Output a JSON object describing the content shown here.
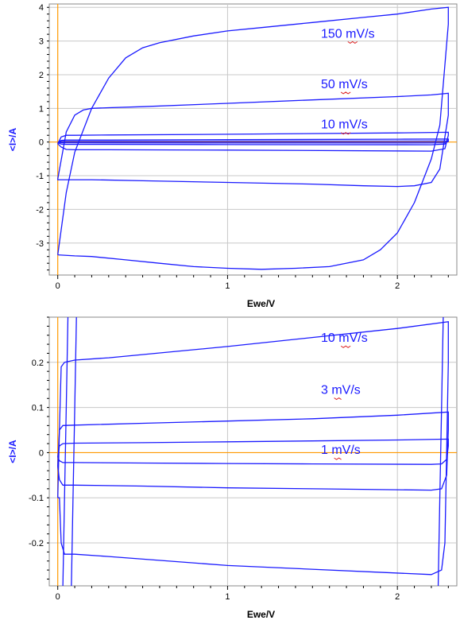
{
  "chart_data": [
    {
      "type": "line",
      "xlabel": "Ewe/V",
      "ylabel": "<I>/A",
      "xlim": [
        -0.05,
        2.35
      ],
      "ylim": [
        -3.95,
        4.1
      ],
      "xticks": [
        0,
        1,
        2
      ],
      "xtick_labels": [
        "0",
        "1",
        "2"
      ],
      "yticks": [
        -3,
        -2,
        -1,
        0,
        1,
        2,
        3,
        4
      ],
      "ytick_labels": [
        "-3",
        "-2",
        "-1",
        "0",
        "1",
        "2",
        "3",
        "4"
      ],
      "grid": true,
      "series_color": "#1a1aff",
      "zero_line_color": "#ff9900",
      "label_underline_color": "#dd2222",
      "series": [
        {
          "name": "150 mV/s",
          "x": [
            0.0,
            0.05,
            0.1,
            0.2,
            0.3,
            0.4,
            0.5,
            0.6,
            0.8,
            1.0,
            1.2,
            1.5,
            1.8,
            2.0,
            2.2,
            2.3,
            2.3,
            2.25,
            2.2,
            2.1,
            2.0,
            1.9,
            1.8,
            1.6,
            1.4,
            1.2,
            1.0,
            0.8,
            0.6,
            0.4,
            0.2,
            0.1,
            0.0,
            0.0
          ],
          "y": [
            -3.35,
            -1.5,
            -0.3,
            1.0,
            1.9,
            2.5,
            2.8,
            2.95,
            3.15,
            3.3,
            3.4,
            3.55,
            3.7,
            3.8,
            3.95,
            4.0,
            3.5,
            0.5,
            -0.5,
            -1.8,
            -2.7,
            -3.2,
            -3.5,
            -3.7,
            -3.75,
            -3.78,
            -3.75,
            -3.7,
            -3.6,
            -3.5,
            -3.4,
            -3.38,
            -3.35,
            -3.35
          ]
        },
        {
          "name": "50 mV/s",
          "x": [
            0.0,
            0.05,
            0.1,
            0.15,
            0.2,
            0.3,
            0.5,
            1.0,
            1.5,
            2.0,
            2.2,
            2.3,
            2.3,
            2.25,
            2.2,
            2.1,
            2.0,
            1.8,
            1.5,
            1.0,
            0.5,
            0.2,
            0.1,
            0.05,
            0.0,
            0.0
          ],
          "y": [
            -1.1,
            0.3,
            0.8,
            0.95,
            1.0,
            1.02,
            1.05,
            1.15,
            1.25,
            1.35,
            1.4,
            1.45,
            0.8,
            -0.8,
            -1.2,
            -1.3,
            -1.32,
            -1.3,
            -1.25,
            -1.2,
            -1.15,
            -1.12,
            -1.12,
            -1.12,
            -1.12,
            -1.1
          ]
        },
        {
          "name": "10 mV/s",
          "x": [
            0.0,
            0.02,
            0.05,
            0.1,
            0.3,
            1.0,
            2.0,
            2.3,
            2.3,
            2.28,
            2.2,
            1.0,
            0.3,
            0.1,
            0.05,
            0.02,
            0.0,
            0.0
          ],
          "y": [
            -0.05,
            0.15,
            0.2,
            0.2,
            0.21,
            0.23,
            0.27,
            0.29,
            0.2,
            -0.2,
            -0.27,
            -0.24,
            -0.23,
            -0.23,
            -0.22,
            -0.15,
            -0.05,
            -0.05
          ]
        },
        {
          "name": "3 mV/s",
          "x": [
            0.0,
            0.02,
            0.05,
            0.3,
            1.0,
            2.0,
            2.3,
            2.3,
            2.28,
            2.2,
            1.0,
            0.3,
            0.05,
            0.02,
            0.0
          ],
          "y": [
            -0.02,
            0.05,
            0.06,
            0.062,
            0.07,
            0.085,
            0.09,
            0.05,
            -0.06,
            -0.08,
            -0.075,
            -0.07,
            -0.07,
            -0.06,
            -0.02
          ]
        },
        {
          "name": "1 mV/s",
          "x": [
            0.0,
            0.02,
            0.05,
            0.3,
            1.0,
            2.0,
            2.3,
            2.3,
            2.28,
            2.2,
            1.0,
            0.3,
            0.05,
            0.02,
            0.0
          ],
          "y": [
            -0.01,
            0.015,
            0.02,
            0.021,
            0.025,
            0.028,
            0.03,
            0.015,
            -0.02,
            -0.025,
            -0.024,
            -0.023,
            -0.022,
            -0.018,
            -0.01
          ]
        }
      ],
      "labels": [
        {
          "text": "150 mV/s",
          "x": 1.55,
          "y": 3.1
        },
        {
          "text": "50 mV/s",
          "x": 1.55,
          "y": 1.6
        },
        {
          "text": "10 mV/s",
          "x": 1.55,
          "y": 0.4
        }
      ]
    },
    {
      "type": "line",
      "xlabel": "Ewe/V",
      "ylabel": "<I>/A",
      "xlim": [
        -0.05,
        2.35
      ],
      "ylim": [
        -0.295,
        0.3
      ],
      "xticks": [
        0,
        1,
        2
      ],
      "xtick_labels": [
        "0",
        "1",
        "2"
      ],
      "yticks": [
        -0.2,
        -0.1,
        0,
        0.1,
        0.2
      ],
      "ytick_labels": [
        "-0.2",
        "-0.1",
        "0",
        "0.1",
        "0.2"
      ],
      "grid": true,
      "series_color": "#1a1aff",
      "zero_line_color": "#ff9900",
      "label_underline_color": "#dd2222",
      "series": [
        {
          "name": "10 mV/s",
          "x": [
            0.0,
            0.01,
            0.02,
            0.04,
            0.1,
            0.3,
            1.0,
            2.0,
            2.3,
            2.3,
            2.29,
            2.28,
            2.26,
            2.2,
            1.0,
            0.3,
            0.1,
            0.04,
            0.02,
            0.01,
            0.0
          ],
          "y": [
            -0.1,
            0.05,
            0.19,
            0.2,
            0.205,
            0.21,
            0.235,
            0.275,
            0.29,
            0.2,
            0.0,
            -0.2,
            -0.26,
            -0.27,
            -0.25,
            -0.23,
            -0.225,
            -0.225,
            -0.2,
            -0.1,
            -0.1
          ]
        },
        {
          "name": "3 mV/s",
          "x": [
            0.0,
            0.01,
            0.03,
            0.1,
            0.5,
            1.0,
            1.5,
            2.0,
            2.3,
            2.3,
            2.29,
            2.26,
            2.2,
            1.5,
            1.0,
            0.5,
            0.1,
            0.03,
            0.01,
            0.0
          ],
          "y": [
            -0.03,
            0.05,
            0.06,
            0.061,
            0.065,
            0.07,
            0.075,
            0.083,
            0.09,
            0.05,
            -0.05,
            -0.08,
            -0.083,
            -0.08,
            -0.078,
            -0.074,
            -0.072,
            -0.072,
            -0.06,
            -0.03
          ]
        },
        {
          "name": "1 mV/s",
          "x": [
            0.0,
            0.01,
            0.03,
            0.1,
            0.5,
            1.0,
            1.5,
            2.0,
            2.3,
            2.3,
            2.29,
            2.26,
            2.2,
            1.5,
            1.0,
            0.5,
            0.1,
            0.03,
            0.01,
            0.0
          ],
          "y": [
            -0.01,
            0.015,
            0.02,
            0.021,
            0.022,
            0.024,
            0.026,
            0.028,
            0.03,
            0.015,
            -0.015,
            -0.025,
            -0.026,
            -0.025,
            -0.024,
            -0.023,
            -0.022,
            -0.022,
            -0.018,
            -0.01
          ]
        },
        {
          "name": "",
          "x": [
            0.03,
            0.04,
            0.05,
            0.06
          ],
          "y": [
            -0.3,
            -0.1,
            0.1,
            0.3
          ]
        },
        {
          "name": "",
          "x": [
            0.08,
            0.09,
            0.1,
            0.11
          ],
          "y": [
            -0.3,
            -0.1,
            0.1,
            0.3
          ]
        },
        {
          "name": "",
          "x": [
            2.24,
            2.25,
            2.26,
            2.27
          ],
          "y": [
            -0.3,
            -0.1,
            0.1,
            0.3
          ]
        }
      ],
      "labels": [
        {
          "text": "10 mV/s",
          "x": 1.55,
          "y": 0.245
        },
        {
          "text": "3 mV/s",
          "x": 1.55,
          "y": 0.13
        },
        {
          "text": "1 mV/s",
          "x": 1.55,
          "y": -0.003
        }
      ]
    }
  ]
}
